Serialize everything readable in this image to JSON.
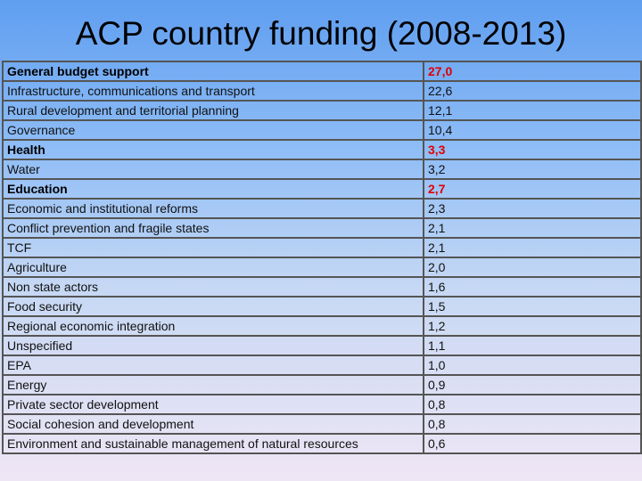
{
  "header": {
    "title": "ACP country funding (2008-2013)"
  },
  "table": {
    "rows": [
      {
        "label": "General budget support",
        "value": "27,0",
        "emphasis": true
      },
      {
        "label": "Infrastructure, communications and transport",
        "value": "22,6",
        "emphasis": false
      },
      {
        "label": "Rural development and territorial planning",
        "value": "12,1",
        "emphasis": false
      },
      {
        "label": "Governance",
        "value": "10,4",
        "emphasis": false
      },
      {
        "label": "Health",
        "value": "3,3",
        "emphasis": true
      },
      {
        "label": "Water",
        "value": "3,2",
        "emphasis": false
      },
      {
        "label": "Education",
        "value": "2,7",
        "emphasis": true
      },
      {
        "label": "Economic and institutional reforms",
        "value": "2,3",
        "emphasis": false
      },
      {
        "label": "Conflict prevention and fragile states",
        "value": "2,1",
        "emphasis": false
      },
      {
        "label": "TCF",
        "value": "2,1",
        "emphasis": false
      },
      {
        "label": "Agriculture",
        "value": "2,0",
        "emphasis": false
      },
      {
        "label": "Non state actors",
        "value": "1,6",
        "emphasis": false
      },
      {
        "label": "Food security",
        "value": "1,5",
        "emphasis": false
      },
      {
        "label": "Regional economic integration",
        "value": "1,2",
        "emphasis": false
      },
      {
        "label": "Unspecified",
        "value": "1,1",
        "emphasis": false
      },
      {
        "label": "EPA",
        "value": "1,0",
        "emphasis": false
      },
      {
        "label": "Energy",
        "value": "0,9",
        "emphasis": false
      },
      {
        "label": "Private sector development",
        "value": "0,8",
        "emphasis": false
      },
      {
        "label": "Social cohesion and development",
        "value": "0,8",
        "emphasis": false
      },
      {
        "label": "Environment and sustainable management of natural resources",
        "value": "0,6",
        "emphasis": false
      }
    ]
  }
}
